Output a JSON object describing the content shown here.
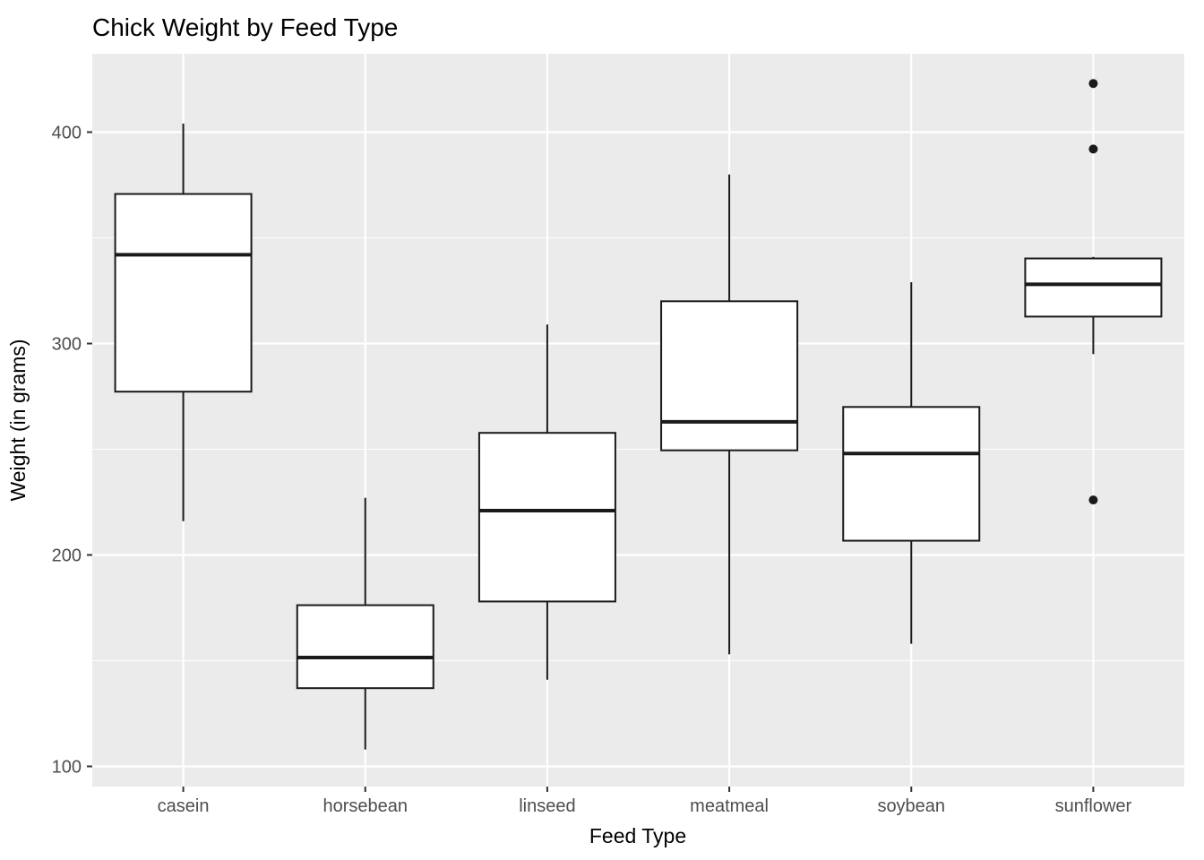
{
  "chart_data": {
    "type": "boxplot",
    "title": "Chick Weight by Feed Type",
    "xlabel": "Feed Type",
    "ylabel": "Weight (in grams)",
    "categories": [
      "casein",
      "horsebean",
      "linseed",
      "meatmeal",
      "soybean",
      "sunflower"
    ],
    "y_ticks": [
      100,
      200,
      300,
      400
    ],
    "ylim": [
      90,
      437
    ],
    "grid": "on",
    "boxes": [
      {
        "category": "casein",
        "whisker_low": 216,
        "q1": 277.25,
        "median": 342,
        "q3": 370.75,
        "whisker_high": 404,
        "outliers": []
      },
      {
        "category": "horsebean",
        "whisker_low": 108,
        "q1": 137,
        "median": 151.5,
        "q3": 176.25,
        "whisker_high": 227,
        "outliers": []
      },
      {
        "category": "linseed",
        "whisker_low": 141,
        "q1": 178,
        "median": 221,
        "q3": 257.75,
        "whisker_high": 309,
        "outliers": []
      },
      {
        "category": "meatmeal",
        "whisker_low": 153,
        "q1": 249.5,
        "median": 263,
        "q3": 320,
        "whisker_high": 380,
        "outliers": []
      },
      {
        "category": "soybean",
        "whisker_low": 158,
        "q1": 206.75,
        "median": 248,
        "q3": 270,
        "whisker_high": 329,
        "outliers": []
      },
      {
        "category": "sunflower",
        "whisker_low": 295,
        "q1": 312.75,
        "median": 328,
        "q3": 340.25,
        "whisker_high": 341,
        "outliers": [
          226,
          392,
          423
        ]
      }
    ],
    "colors": {
      "panel_bg": "#EBEBEB",
      "grid": "#FFFFFF",
      "box_fill": "#FFFFFF",
      "box_stroke": "#1A1A1A",
      "tick_mark": "#333333",
      "axis_text": "#4D4D4D",
      "title_text": "#000000"
    }
  }
}
